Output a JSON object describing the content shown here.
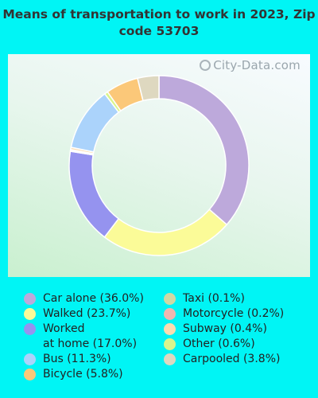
{
  "chart_data": {
    "type": "pie",
    "title": "Means of transportation to work in 2023, Zip code 53703",
    "donut": true,
    "slices": [
      {
        "label": "Car alone (36.0%)",
        "value": 36.0,
        "color": "#bda9db"
      },
      {
        "label": "Walked (23.7%)",
        "value": 23.7,
        "color": "#fbfb98"
      },
      {
        "label": "Worked\nat home (17.0%)",
        "value": 17.0,
        "color": "#9593ef"
      },
      {
        "label": "Taxi (0.1%)",
        "value": 0.1,
        "color": "#cfd8a4"
      },
      {
        "label": "Motorcycle (0.2%)",
        "value": 0.2,
        "color": "#f0b7b0"
      },
      {
        "label": "Subway (0.4%)",
        "value": 0.4,
        "color": "#fbdcb0"
      },
      {
        "label": "Bus (11.3%)",
        "value": 11.3,
        "color": "#abd3fb"
      },
      {
        "label": "Other (0.6%)",
        "value": 0.6,
        "color": "#d9f58c"
      },
      {
        "label": "Bicycle (5.8%)",
        "value": 5.8,
        "color": "#fbc879"
      },
      {
        "label": "Carpooled (3.8%)",
        "value": 3.8,
        "color": "#ded8c0"
      }
    ],
    "legend_columns": [
      [
        "Car alone (36.0%)",
        "Walked (23.7%)",
        "Worked\nat home (17.0%)",
        "Bus (11.3%)",
        "Bicycle (5.8%)"
      ],
      [
        "Taxi (0.1%)",
        "Motorcycle (0.2%)",
        "Subway (0.4%)",
        "Other (0.6%)",
        "Carpooled (3.8%)"
      ]
    ]
  },
  "watermark": "City-Data.com",
  "watermark_icon": "city-data-logo-icon"
}
